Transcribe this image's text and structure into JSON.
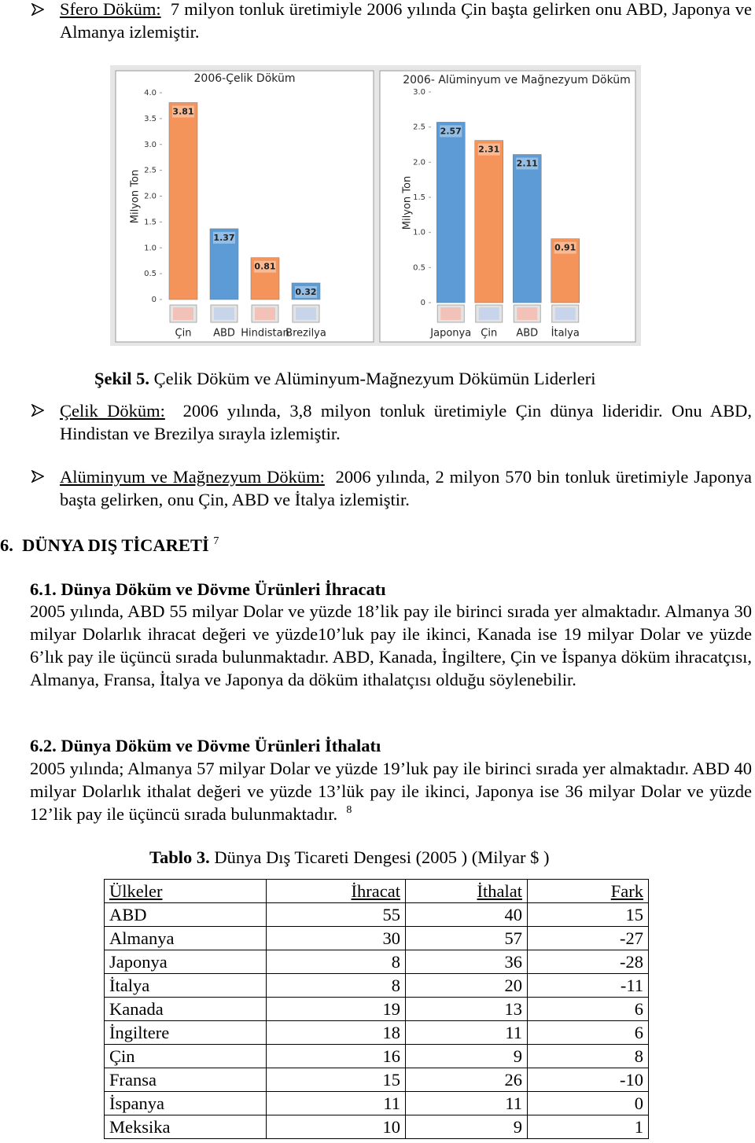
{
  "bullets": [
    {
      "term": "Sfero Döküm:",
      "text": "7 milyon tonluk üretimiyle 2006 yılında Çin başta gelirken onu ABD, Japonya ve Almanya izlemiştir."
    },
    {
      "term": "Çelik Döküm:",
      "text": "2006 yılında, 3,8 milyon tonluk üretimiyle Çin dünya lideridir. Onu ABD, Hindistan ve Brezilya sırayla izlemiştir."
    },
    {
      "term": "Alüminyum ve Mağnezyum Döküm:",
      "text": "2006 yılında, 2 milyon 570 bin tonluk üretimiyle Japonya başta gelirken, onu Çin, ABD ve İtalya izlemiştir."
    }
  ],
  "figure": {
    "label": "Şekil 5.",
    "caption": "Çelik Döküm ve Alüminyum-Mağnezyum Dökümün Liderleri"
  },
  "chart_data": [
    {
      "type": "bar",
      "title": "2006-Çelik Döküm",
      "y_label": "Milyon Ton",
      "categories": [
        "Çin",
        "ABD",
        "Hindistan",
        "Brezilya"
      ],
      "values": [
        3.81,
        1.37,
        0.81,
        0.32
      ],
      "colors": [
        "#f4945a",
        "#5c9bd6",
        "#f4945a",
        "#5c9bd6"
      ],
      "ylim": [
        0,
        4
      ],
      "yticks": [
        0,
        0.5,
        {
          "value": 1,
          "label": "1.0"
        },
        1.5,
        {
          "value": 2,
          "label": "2.0"
        },
        2.5,
        {
          "value": 3,
          "label": "3.0"
        },
        3.5,
        {
          "value": 4,
          "label": "4.0"
        }
      ]
    },
    {
      "type": "bar",
      "title": "2006- Alüminyum ve Mağnezyum Döküm",
      "y_label": "Milyon Ton",
      "categories": [
        "Japonya",
        "Çin",
        "ABD",
        "İtalya"
      ],
      "values": [
        2.57,
        2.31,
        2.11,
        0.91
      ],
      "colors": [
        "#5c9bd6",
        "#f4945a",
        "#5c9bd6",
        "#f4945a"
      ],
      "ylim": [
        0,
        3
      ],
      "yticks": [
        0,
        0.5,
        {
          "value": 1,
          "label": "1.0"
        },
        1.5,
        {
          "value": 2,
          "label": "2.0"
        },
        2.5,
        {
          "value": 3,
          "label": "3.0"
        }
      ]
    }
  ],
  "section": {
    "number": "6.",
    "title": "DÜNYA DIŞ TİCARETİ",
    "footnote": "7"
  },
  "subsections": [
    {
      "number": "6.1.",
      "title": "Dünya Döküm ve Dövme Ürünleri İhracatı",
      "text": "2005 yılında, ABD 55 milyar Dolar ve yüzde 18’lik pay ile birinci sırada yer almaktadır. Almanya 30 milyar Dolarlık ihracat değeri ve yüzde10’luk pay ile ikinci, Kanada ise 19 milyar Dolar ve yüzde 6’lık pay ile üçüncü sırada bulunmaktadır. ABD, Kanada, İngiltere, Çin ve İspanya döküm ihracatçısı, Almanya, Fransa, İtalya ve Japonya da döküm ithalatçısı olduğu söylenebilir."
    },
    {
      "number": "6.2.",
      "title": "Dünya Döküm ve Dövme Ürünleri İthalatı",
      "text": "2005 yılında; Almanya 57 milyar Dolar ve yüzde 19’luk pay ile birinci sırada yer almaktadır. ABD 40 milyar Dolarlık ithalat değeri ve yüzde 13’lük pay ile ikinci, Japonya ise 36 milyar Dolar ve yüzde 12’lik pay ile üçüncü sırada bulunmaktadır.",
      "footnote": "8"
    }
  ],
  "table": {
    "label": "Tablo 3.",
    "caption": "Dünya Dış Ticareti Dengesi (2005 ) (Milyar $ )",
    "columns": [
      "Ülkeler",
      "İhracat",
      "İthalat",
      "Fark"
    ],
    "rows": [
      [
        "ABD",
        55,
        40,
        15
      ],
      [
        "Almanya",
        30,
        57,
        -27
      ],
      [
        "Japonya",
        8,
        36,
        -28
      ],
      [
        "İtalya",
        8,
        20,
        -11
      ],
      [
        "Kanada",
        19,
        13,
        6
      ],
      [
        "İngiltere",
        18,
        11,
        6
      ],
      [
        "Çin",
        16,
        9,
        8
      ],
      [
        "Fransa",
        15,
        26,
        -10
      ],
      [
        "İspanya",
        11,
        11,
        0
      ],
      [
        "Meksika",
        10,
        9,
        1
      ]
    ]
  }
}
